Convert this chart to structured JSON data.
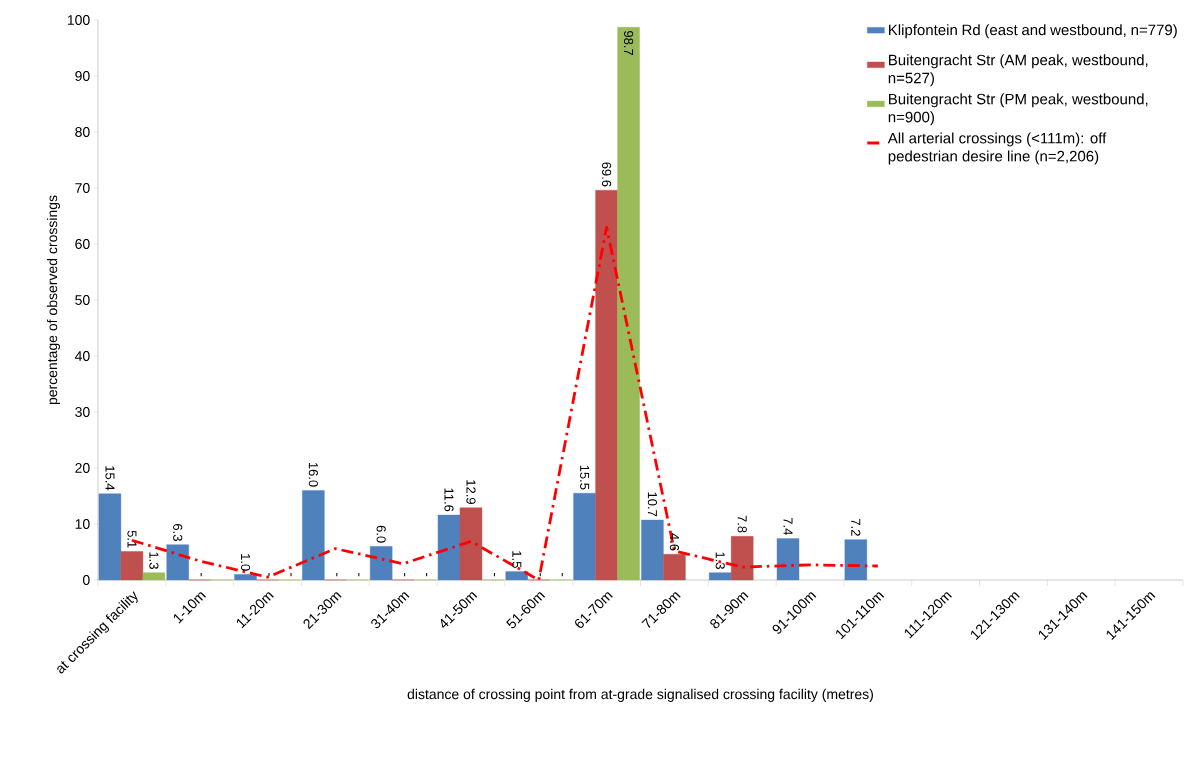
{
  "chart_data": {
    "type": "bar",
    "xlabel": "distance of crossing point from at-grade signalised crossing facility (metres)",
    "ylabel": "percentage of observed crossings",
    "categories": [
      "at crossing facility",
      "1-10m",
      "11-20m",
      "21-30m",
      "31-40m",
      "41-50m",
      "51-60m",
      "61-70m",
      "71-80m",
      "81-90m",
      "91-100m",
      "101-110m",
      "111-120m",
      "121-130m",
      "131-140m",
      "141-150m"
    ],
    "ylim": [
      0,
      100
    ],
    "yticks": [
      0,
      10,
      20,
      30,
      40,
      50,
      60,
      70,
      80,
      90,
      100
    ],
    "legend": "top right",
    "series": [
      {
        "name": "Klipfontein Rd (east and westbound, n=779)",
        "color": "#4f81bd",
        "values": [
          15.4,
          6.3,
          1.0,
          16.0,
          6.0,
          11.6,
          1.5,
          15.5,
          10.7,
          1.3,
          7.4,
          7.2,
          null,
          null,
          null,
          null
        ],
        "value_labels": [
          "15.4",
          "6.3",
          "1.0",
          "16.0",
          "6.0",
          "11.6",
          "1.5",
          "15.5",
          "10.7",
          "1.3",
          "7.4",
          "7.2",
          null,
          null,
          null,
          null
        ]
      },
      {
        "name": "Buitengracht Str (AM peak, westbound, n=527)",
        "color": "#c0504d",
        "values": [
          5.1,
          0,
          0,
          0,
          0,
          12.9,
          0,
          69.6,
          4.6,
          7.8,
          null,
          null,
          null,
          null,
          null,
          null
        ],
        "value_labels": [
          "5.1",
          "-",
          "-",
          "-",
          "-",
          "12.9",
          "-",
          "69.6",
          "4.6",
          "7.8",
          null,
          null,
          null,
          null,
          null,
          null
        ]
      },
      {
        "name": "Buitengracht Str (PM peak, westbound, n=900)",
        "color": "#9bbb59",
        "values": [
          1.3,
          0,
          0,
          0,
          0,
          0,
          0,
          98.7,
          null,
          null,
          null,
          null,
          null,
          null,
          null,
          null
        ],
        "value_labels": [
          "1.3",
          null,
          "-",
          "-",
          "-",
          "-",
          "-",
          "98.7",
          null,
          null,
          null,
          null,
          null,
          null,
          null,
          null
        ]
      },
      {
        "name": "All arterial crossings (<111m): off pedestrian desire line (n=2,206)",
        "type": "line",
        "color": "#ff0000",
        "line_style": "dashed",
        "marker": "none",
        "values": [
          7.1,
          3.4,
          0.5,
          5.6,
          2.9,
          6.9,
          0,
          63,
          5.2,
          2.3,
          2.7,
          2.5,
          null,
          null,
          null,
          null
        ]
      }
    ]
  }
}
